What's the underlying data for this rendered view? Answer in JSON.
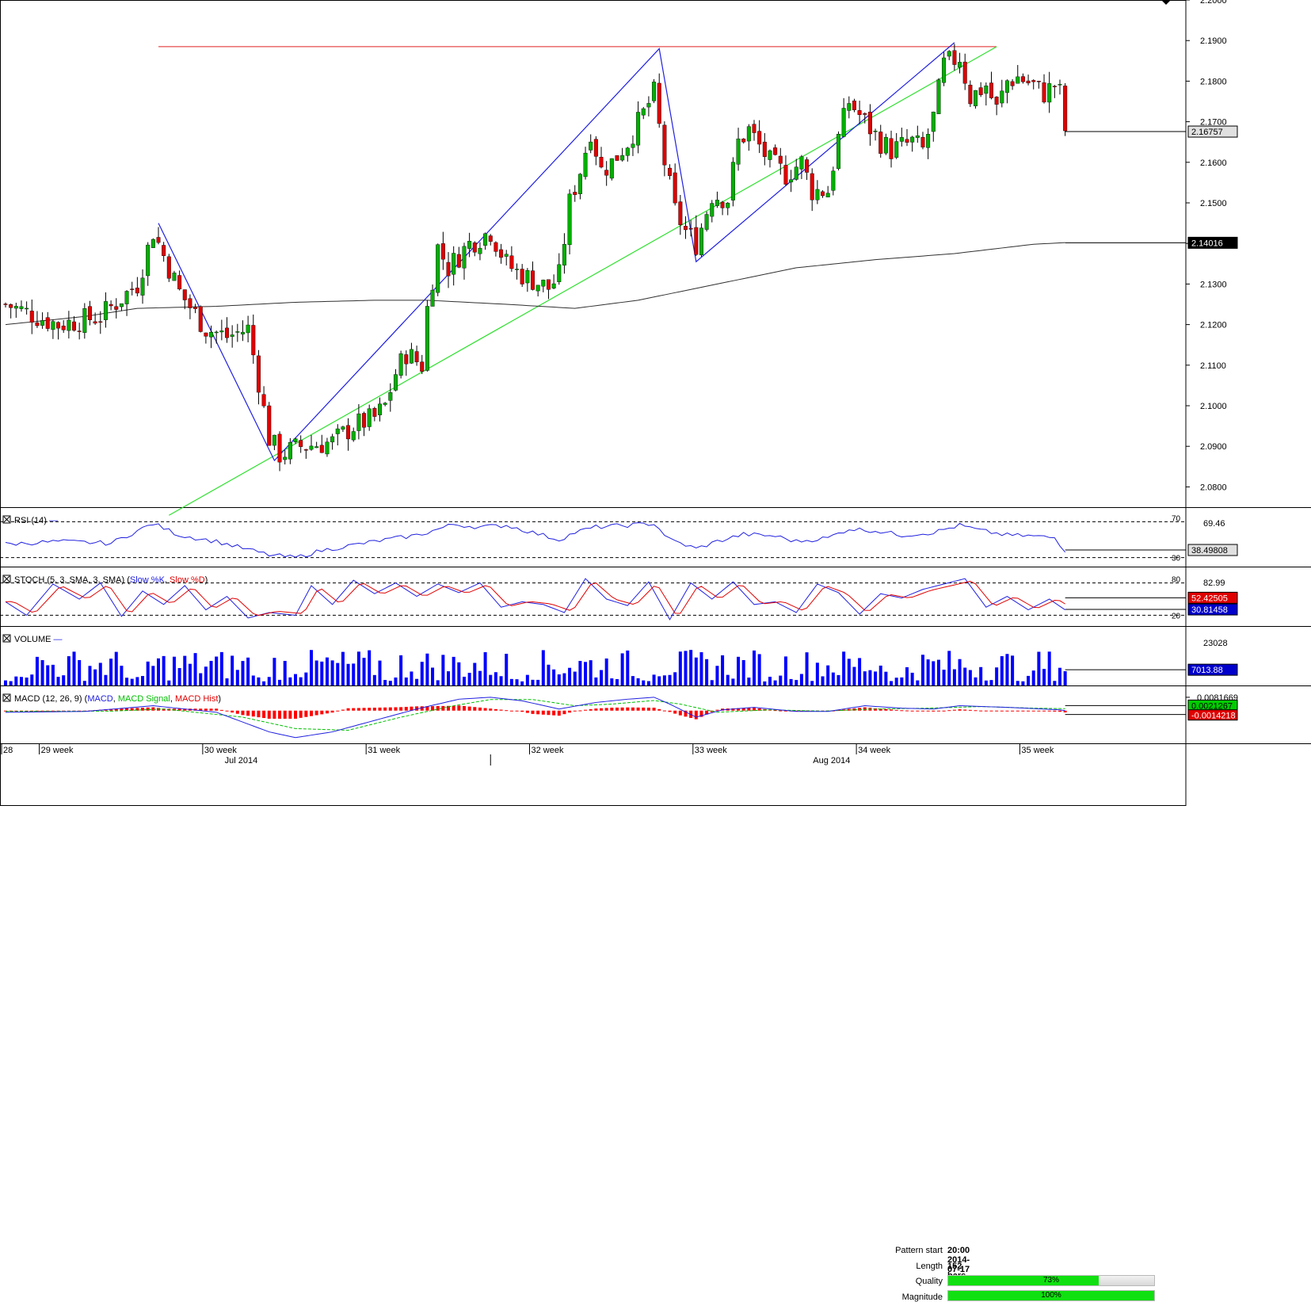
{
  "chart_data": [
    {
      "type": "candlestick",
      "panel": "price",
      "ylim": [
        2.075,
        2.2
      ],
      "y_ticks": [
        "2.2000",
        "2.1900",
        "2.1800",
        "2.1700",
        "2.1600",
        "2.1500",
        "2.1400",
        "2.1300",
        "2.1200",
        "2.1100",
        "2.1000",
        "2.0900",
        "2.0800"
      ],
      "current_price_label": "2.16757",
      "ma_price_label": "2.14016",
      "resistance_level": 2.1885,
      "pattern_points": [
        2.145,
        2.0865,
        2.188,
        2.1355,
        2.1895
      ],
      "support_line": [
        2.073,
        2.1885
      ],
      "price_anchors": [
        [
          0,
          2.125
        ],
        [
          10,
          2.12
        ],
        [
          18,
          2.122
        ],
        [
          25,
          2.13
        ],
        [
          28,
          2.143
        ],
        [
          33,
          2.128
        ],
        [
          38,
          2.119
        ],
        [
          42,
          2.117
        ],
        [
          46,
          2.119
        ],
        [
          48,
          2.106
        ],
        [
          50,
          2.092
        ],
        [
          52,
          2.088
        ],
        [
          56,
          2.09
        ],
        [
          62,
          2.091
        ],
        [
          66,
          2.095
        ],
        [
          70,
          2.097
        ],
        [
          72,
          2.1
        ],
        [
          74,
          2.108
        ],
        [
          76,
          2.113
        ],
        [
          79,
          2.11
        ],
        [
          80,
          2.124
        ],
        [
          82,
          2.139
        ],
        [
          84,
          2.134
        ],
        [
          86,
          2.137
        ],
        [
          88,
          2.14
        ],
        [
          92,
          2.143
        ],
        [
          95,
          2.135
        ],
        [
          97,
          2.133
        ],
        [
          100,
          2.131
        ],
        [
          103,
          2.129
        ],
        [
          105,
          2.132
        ],
        [
          107,
          2.15
        ],
        [
          109,
          2.158
        ],
        [
          111,
          2.168
        ],
        [
          113,
          2.158
        ],
        [
          115,
          2.16
        ],
        [
          118,
          2.165
        ],
        [
          121,
          2.172
        ],
        [
          123,
          2.177
        ],
        [
          125,
          2.16
        ],
        [
          127,
          2.148
        ],
        [
          129,
          2.143
        ],
        [
          131,
          2.14
        ],
        [
          134,
          2.152
        ],
        [
          137,
          2.151
        ],
        [
          139,
          2.165
        ],
        [
          141,
          2.168
        ],
        [
          145,
          2.16
        ],
        [
          148,
          2.157
        ],
        [
          151,
          2.16
        ],
        [
          153,
          2.153
        ],
        [
          156,
          2.153
        ],
        [
          158,
          2.166
        ],
        [
          160,
          2.175
        ],
        [
          163,
          2.17
        ],
        [
          166,
          2.165
        ],
        [
          168,
          2.163
        ],
        [
          172,
          2.165
        ],
        [
          174,
          2.163
        ],
        [
          176,
          2.171
        ],
        [
          178,
          2.184
        ],
        [
          181,
          2.186
        ],
        [
          183,
          2.176
        ],
        [
          186,
          2.179
        ],
        [
          188,
          2.173
        ],
        [
          190,
          2.18
        ],
        [
          192,
          2.181
        ],
        [
          195,
          2.179
        ],
        [
          197,
          2.177
        ],
        [
          199,
          2.179
        ],
        [
          200,
          2.177
        ],
        [
          201,
          2.168
        ]
      ],
      "ma_anchors": [
        [
          0,
          2.12
        ],
        [
          15,
          2.122
        ],
        [
          25,
          2.124
        ],
        [
          40,
          2.1245
        ],
        [
          55,
          2.1255
        ],
        [
          70,
          2.126
        ],
        [
          80,
          2.126
        ],
        [
          95,
          2.125
        ],
        [
          108,
          2.124
        ],
        [
          120,
          2.126
        ],
        [
          135,
          2.13
        ],
        [
          150,
          2.134
        ],
        [
          165,
          2.136
        ],
        [
          180,
          2.1375
        ],
        [
          195,
          2.1398
        ],
        [
          201,
          2.1402
        ]
      ],
      "x_labels": [
        "28",
        "29 week",
        "30 week",
        "31 week",
        "32 week",
        "33 week",
        "34 week",
        "35 week"
      ],
      "month_labels": [
        "Jul 2014",
        "Aug 2014"
      ]
    },
    {
      "type": "line",
      "panel": "rsi",
      "title": "RSI (14)",
      "levels": [
        "70",
        "30"
      ],
      "right_top": "69.46",
      "last_value_label": "38.49808",
      "ylim": [
        20,
        80
      ],
      "anchors": [
        [
          0,
          45
        ],
        [
          10,
          48
        ],
        [
          20,
          46
        ],
        [
          28,
          68
        ],
        [
          33,
          55
        ],
        [
          40,
          48
        ],
        [
          50,
          33
        ],
        [
          55,
          30
        ],
        [
          60,
          38
        ],
        [
          70,
          48
        ],
        [
          78,
          55
        ],
        [
          80,
          58
        ],
        [
          85,
          67
        ],
        [
          90,
          64
        ],
        [
          95,
          66
        ],
        [
          100,
          58
        ],
        [
          105,
          50
        ],
        [
          108,
          58
        ],
        [
          112,
          64
        ],
        [
          118,
          66
        ],
        [
          123,
          68
        ],
        [
          126,
          50
        ],
        [
          131,
          40
        ],
        [
          135,
          48
        ],
        [
          140,
          56
        ],
        [
          146,
          54
        ],
        [
          150,
          48
        ],
        [
          156,
          52
        ],
        [
          160,
          62
        ],
        [
          165,
          60
        ],
        [
          170,
          55
        ],
        [
          176,
          58
        ],
        [
          181,
          66
        ],
        [
          185,
          60
        ],
        [
          190,
          55
        ],
        [
          195,
          54
        ],
        [
          199,
          52
        ],
        [
          201,
          38
        ]
      ]
    },
    {
      "type": "line",
      "panel": "stoch",
      "title": "STOCH (5, 3, SMA, 3, SMA)",
      "legend": [
        "Slow %K",
        "Slow %D"
      ],
      "levels": [
        "80",
        "20"
      ],
      "right_top": "82.99",
      "last_labels": [
        "52.42505",
        "30.81458"
      ],
      "ylim": [
        0,
        100
      ],
      "k_anchors": [
        [
          0,
          45
        ],
        [
          4,
          20
        ],
        [
          9,
          78
        ],
        [
          14,
          50
        ],
        [
          18,
          80
        ],
        [
          22,
          18
        ],
        [
          26,
          65
        ],
        [
          30,
          40
        ],
        [
          34,
          75
        ],
        [
          38,
          30
        ],
        [
          42,
          55
        ],
        [
          46,
          15
        ],
        [
          50,
          25
        ],
        [
          55,
          20
        ],
        [
          58,
          75
        ],
        [
          62,
          40
        ],
        [
          66,
          85
        ],
        [
          70,
          60
        ],
        [
          74,
          80
        ],
        [
          78,
          55
        ],
        [
          82,
          78
        ],
        [
          86,
          62
        ],
        [
          90,
          80
        ],
        [
          94,
          35
        ],
        [
          98,
          45
        ],
        [
          102,
          40
        ],
        [
          106,
          25
        ],
        [
          110,
          88
        ],
        [
          114,
          50
        ],
        [
          118,
          38
        ],
        [
          122,
          82
        ],
        [
          126,
          12
        ],
        [
          130,
          80
        ],
        [
          134,
          50
        ],
        [
          138,
          82
        ],
        [
          142,
          40
        ],
        [
          146,
          45
        ],
        [
          150,
          25
        ],
        [
          154,
          78
        ],
        [
          158,
          62
        ],
        [
          162,
          22
        ],
        [
          166,
          60
        ],
        [
          170,
          52
        ],
        [
          174,
          68
        ],
        [
          178,
          78
        ],
        [
          182,
          88
        ],
        [
          186,
          35
        ],
        [
          190,
          55
        ],
        [
          194,
          30
        ],
        [
          198,
          50
        ],
        [
          201,
          30
        ]
      ]
    },
    {
      "type": "bar",
      "panel": "volume",
      "title": "VOLUME",
      "right_top": "23028",
      "last_value_label": "7013.88",
      "ylim": [
        0,
        24000
      ],
      "value_range": [
        2000,
        16000
      ]
    },
    {
      "type": "line",
      "panel": "macd",
      "title": "MACD (12, 26, 9)",
      "legend": [
        "MACD",
        "MACD Signal",
        "MACD Hist"
      ],
      "right_labels": [
        "0.0081669",
        "0.0021267",
        "-0.0014218"
      ],
      "ylim": [
        -0.02,
        0.012
      ],
      "macd_anchors": [
        [
          0,
          -0.001
        ],
        [
          15,
          -0.0005
        ],
        [
          28,
          0.003
        ],
        [
          40,
          -0.001
        ],
        [
          50,
          -0.013
        ],
        [
          55,
          -0.0165
        ],
        [
          62,
          -0.013
        ],
        [
          70,
          -0.006
        ],
        [
          78,
          0.001
        ],
        [
          86,
          0.007
        ],
        [
          92,
          0.0082
        ],
        [
          98,
          0.006
        ],
        [
          105,
          0.001
        ],
        [
          112,
          0.005
        ],
        [
          118,
          0.007
        ],
        [
          123,
          0.0082
        ],
        [
          126,
          0.004
        ],
        [
          131,
          -0.004
        ],
        [
          136,
          0.0005
        ],
        [
          142,
          0.002
        ],
        [
          150,
          -0.0005
        ],
        [
          156,
          -0.0005
        ],
        [
          163,
          0.003
        ],
        [
          170,
          0.0015
        ],
        [
          176,
          0.001
        ],
        [
          181,
          0.003
        ],
        [
          190,
          0.002
        ],
        [
          200,
          0.0005
        ],
        [
          201,
          0.0
        ]
      ],
      "signal_anchors": [
        [
          0,
          -0.0005
        ],
        [
          20,
          -0.0003
        ],
        [
          30,
          0.001
        ],
        [
          45,
          -0.004
        ],
        [
          55,
          -0.011
        ],
        [
          65,
          -0.012
        ],
        [
          75,
          -0.004
        ],
        [
          85,
          0.003
        ],
        [
          92,
          0.0068
        ],
        [
          100,
          0.0068
        ],
        [
          108,
          0.003
        ],
        [
          115,
          0.004
        ],
        [
          123,
          0.0062
        ],
        [
          128,
          0.004
        ],
        [
          135,
          -0.001
        ],
        [
          145,
          0.0005
        ],
        [
          155,
          -0.0003
        ],
        [
          165,
          0.001
        ],
        [
          175,
          0.0015
        ],
        [
          185,
          0.0025
        ],
        [
          195,
          0.0015
        ],
        [
          201,
          0.0012
        ]
      ]
    }
  ],
  "pattern_info": {
    "start_label": "Pattern start",
    "start_value": "20:00 2014-07-17",
    "length_label": "Length",
    "length_value": "152 bars",
    "quality_label": "Quality",
    "quality_value": "73%",
    "quality_fraction": 0.73,
    "magnitude_label": "Magnitude",
    "magnitude_value": "100%",
    "magnitude_fraction": 1.0
  },
  "colors": {
    "bull": "#00b000",
    "bear": "#e00000",
    "blue": "#2020e0",
    "green_line": "#30e030",
    "resistance": "#e02020",
    "ma": "#303030",
    "volume": "#0000ff",
    "signal": "#00c000",
    "hist": "#ff0000"
  }
}
